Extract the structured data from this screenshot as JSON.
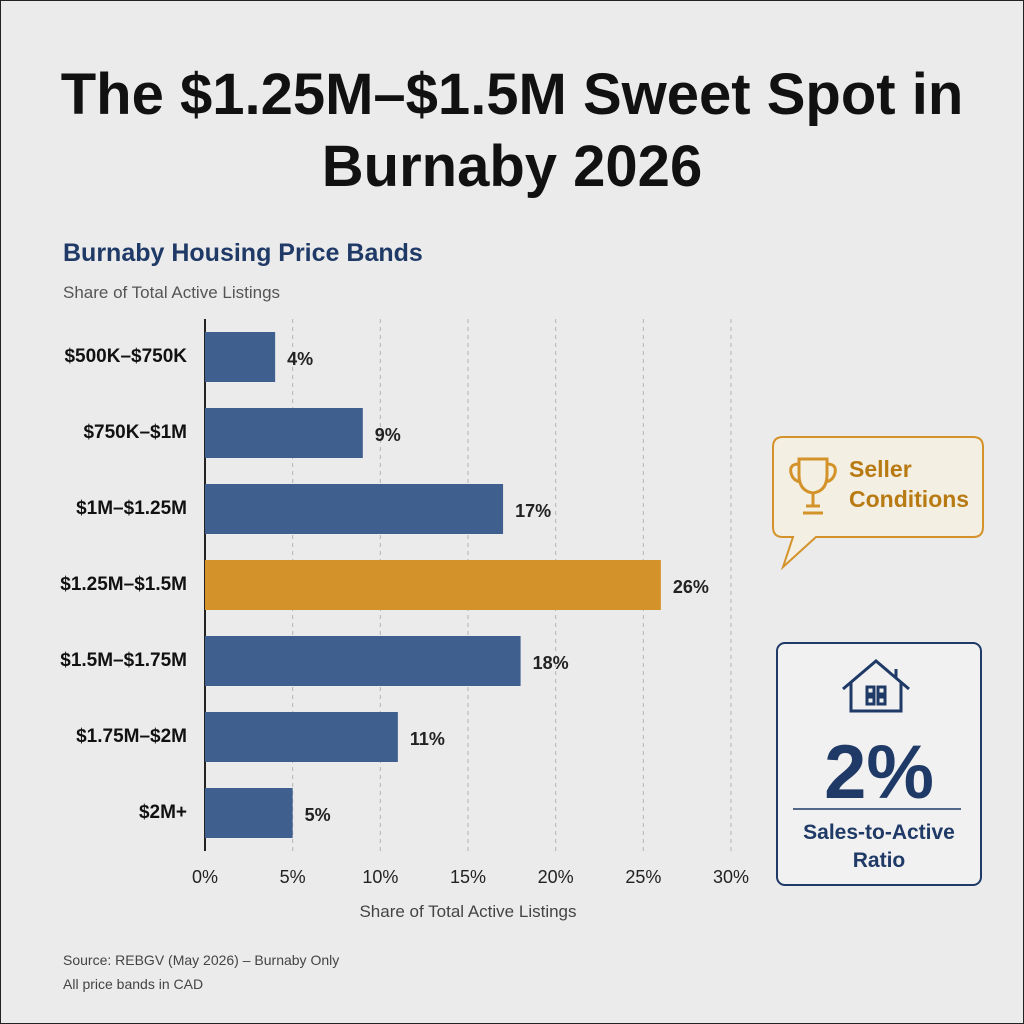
{
  "chart_data": {
    "type": "hbar",
    "title": "The $1.25M–$1.5M Sweet Spot in Burnaby 2026",
    "subtitle": "Burnaby Housing Price Bands",
    "y_caption": "Share of Total Active Listings",
    "x_label": "Share of Total Active Listings",
    "categories": [
      "$500K–$750K",
      "$750K–$1M",
      "$1M–$1.25M",
      "$1.25M–$1.5M",
      "$1.5M–$1.75M",
      "$1.75M–$2M",
      "$2M+"
    ],
    "values": [
      4,
      9,
      17,
      26,
      18,
      11,
      5
    ],
    "value_labels": [
      "4%",
      "9%",
      "17%",
      "26%",
      "18%",
      "11%",
      "5%"
    ],
    "colors": [
      "#3f5f8f",
      "#3f5f8f",
      "#3f5f8f",
      "#d4932a",
      "#3f5f8f",
      "#3f5f8f",
      "#3f5f8f"
    ],
    "xlim": [
      0,
      30
    ],
    "xticks": [
      {
        "value": 0,
        "label": "0%"
      },
      {
        "value": 5,
        "label": "5%"
      },
      {
        "value": 10,
        "label": "10%"
      },
      {
        "value": 15,
        "label": "15%"
      },
      {
        "value": 20,
        "label": "20%"
      },
      {
        "value": 25,
        "label": "25%"
      },
      {
        "value": 30,
        "label": "30%"
      }
    ],
    "grid": true,
    "callout": "Seller Conditions",
    "kpi": {
      "value_label": "2%",
      "label": "Sales-to-Active Ratio"
    },
    "source": [
      "Source: REBGV (May 2026) – Burnaby Only",
      "All price bands in CAD"
    ]
  }
}
